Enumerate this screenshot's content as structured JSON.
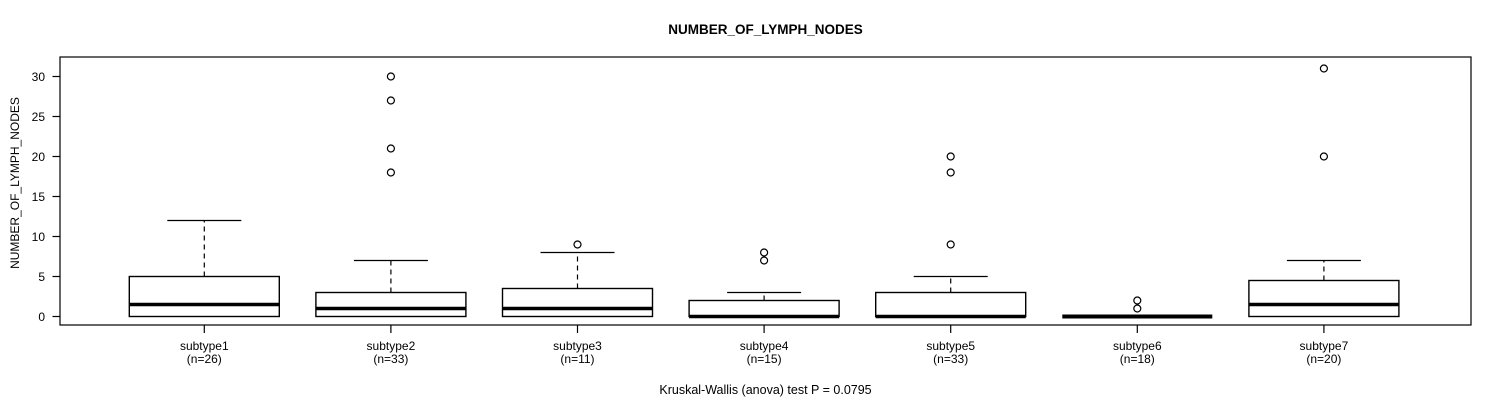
{
  "chart_data": {
    "type": "boxplot",
    "title": "NUMBER_OF_LYMPH_NODES",
    "ylabel": "NUMBER_OF_LYMPH_NODES",
    "stat_caption": "Kruskal-Wallis (anova) test P = 0.0795",
    "yticks": [
      0,
      5,
      10,
      15,
      20,
      25,
      30
    ],
    "ylim": [
      0,
      30
    ],
    "grid": false,
    "groups": [
      {
        "label": "subtype1",
        "n_label": "(n=26)",
        "n": 26,
        "whisker_low": 0,
        "q1": 0,
        "median": 1.5,
        "q3": 5,
        "whisker_high": 12,
        "outliers": []
      },
      {
        "label": "subtype2",
        "n_label": "(n=33)",
        "n": 33,
        "whisker_low": 0,
        "q1": 0,
        "median": 1,
        "q3": 3,
        "whisker_high": 7,
        "outliers": [
          18,
          21,
          27,
          30
        ]
      },
      {
        "label": "subtype3",
        "n_label": "(n=11)",
        "n": 11,
        "whisker_low": 0,
        "q1": 0,
        "median": 1,
        "q3": 3.5,
        "whisker_high": 8,
        "outliers": [
          9
        ]
      },
      {
        "label": "subtype4",
        "n_label": "(n=15)",
        "n": 15,
        "whisker_low": 0,
        "q1": 0,
        "median": 0,
        "q3": 2,
        "whisker_high": 3,
        "outliers": [
          7,
          8
        ]
      },
      {
        "label": "subtype5",
        "n_label": "(n=33)",
        "n": 33,
        "whisker_low": 0,
        "q1": 0,
        "median": 0,
        "q3": 3,
        "whisker_high": 5,
        "outliers": [
          9,
          18,
          20
        ]
      },
      {
        "label": "subtype6",
        "n_label": "(n=18)",
        "n": 18,
        "whisker_low": 0,
        "q1": 0,
        "median": 0,
        "q3": 0,
        "whisker_high": 0,
        "outliers": [
          1,
          2
        ]
      },
      {
        "label": "subtype7",
        "n_label": "(n=20)",
        "n": 20,
        "whisker_low": 0,
        "q1": 0,
        "median": 1.5,
        "q3": 4.5,
        "whisker_high": 7,
        "outliers": [
          20,
          31
        ]
      }
    ],
    "colors": {
      "line": "#000000",
      "box_fill": "#ffffff",
      "background": "#ffffff"
    }
  }
}
